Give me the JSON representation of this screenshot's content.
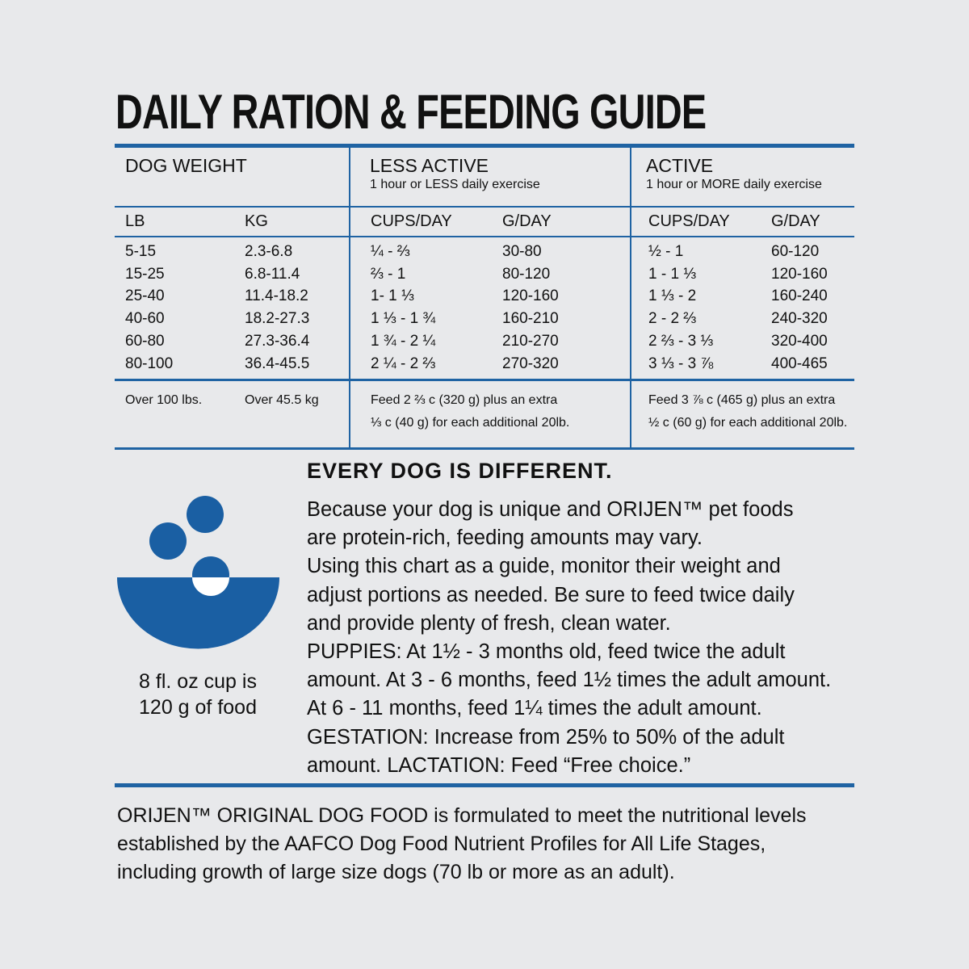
{
  "title": "DAILY RATION & FEEDING GUIDE",
  "table": {
    "headers": {
      "weight": "DOG WEIGHT",
      "less_active": "LESS ACTIVE",
      "less_active_sub": "1 hour or LESS daily exercise",
      "active": "ACTIVE",
      "active_sub": "1 hour or MORE daily exercise"
    },
    "subheaders": [
      "LB",
      "KG",
      "CUPS/DAY",
      "G/DAY",
      "CUPS/DAY",
      "G/DAY"
    ],
    "rows": [
      [
        "5-15",
        "2.3-6.8",
        "¼ - ⅔",
        "30-80",
        "½ - 1",
        "60-120"
      ],
      [
        "15-25",
        "6.8-11.4",
        "⅔ - 1",
        "80-120",
        "1 - 1 ⅓",
        "120-160"
      ],
      [
        "25-40",
        "11.4-18.2",
        "1- 1 ⅓",
        "120-160",
        "1 ⅓ - 2",
        "160-240"
      ],
      [
        "40-60",
        "18.2-27.3",
        "1 ⅓ - 1 ¾",
        "160-210",
        "2 - 2 ⅔",
        "240-320"
      ],
      [
        "60-80",
        "27.3-36.4",
        "1 ¾ - 2 ¼",
        "210-270",
        "2 ⅔ - 3 ⅓",
        "320-400"
      ],
      [
        "80-100",
        "36.4-45.5",
        "2 ¼ - 2 ⅔",
        "270-320",
        "3 ⅓ - 3 ⅞",
        "400-465"
      ]
    ],
    "footer": {
      "lb": "Over 100 lbs.",
      "kg": "Over 45.5 kg",
      "less_1": "Feed 2 ⅔ c (320 g) plus an extra",
      "less_2": "⅓ c (40 g) for each additional 20lb.",
      "active_1": "Feed 3 ⅞ c (465 g) plus an extra",
      "active_2": "½ c (60 g) for each additional 20lb."
    }
  },
  "cup_note": {
    "line1": "8 fl. oz cup is",
    "line2": "120 g of food"
  },
  "every_dog": {
    "heading": "EVERY DOG IS DIFFERENT.",
    "lines": [
      "Because your dog is unique and ORIJEN™ pet foods",
      "are protein-rich, feeding amounts may vary.",
      "Using this chart as a guide, monitor their weight and",
      "adjust portions as needed. Be sure to feed twice daily",
      "and provide plenty of fresh, clean water.",
      "PUPPIES: At 1½ - 3 months old, feed twice the adult",
      "amount. At 3 - 6 months, feed 1½ times the adult amount.",
      "At 6 - 11 months, feed 1¼ times the adult amount.",
      "GESTATION: Increase from 25% to 50% of the adult",
      "amount. LACTATION: Feed “Free choice.”"
    ]
  },
  "footer": {
    "lines": [
      "ORIJEN™ ORIGINAL DOG FOOD is formulated to meet the nutritional levels",
      "established by the AAFCO Dog Food Nutrient Profiles for All Life Stages,",
      "including growth of large size dogs (70 lb or more as an adult)."
    ]
  },
  "colors": {
    "accent": "#1f63a3",
    "bowl": "#1a5fa3",
    "background": "#e8e9eb"
  },
  "icons": [
    "bowl-with-kibble-icon"
  ]
}
